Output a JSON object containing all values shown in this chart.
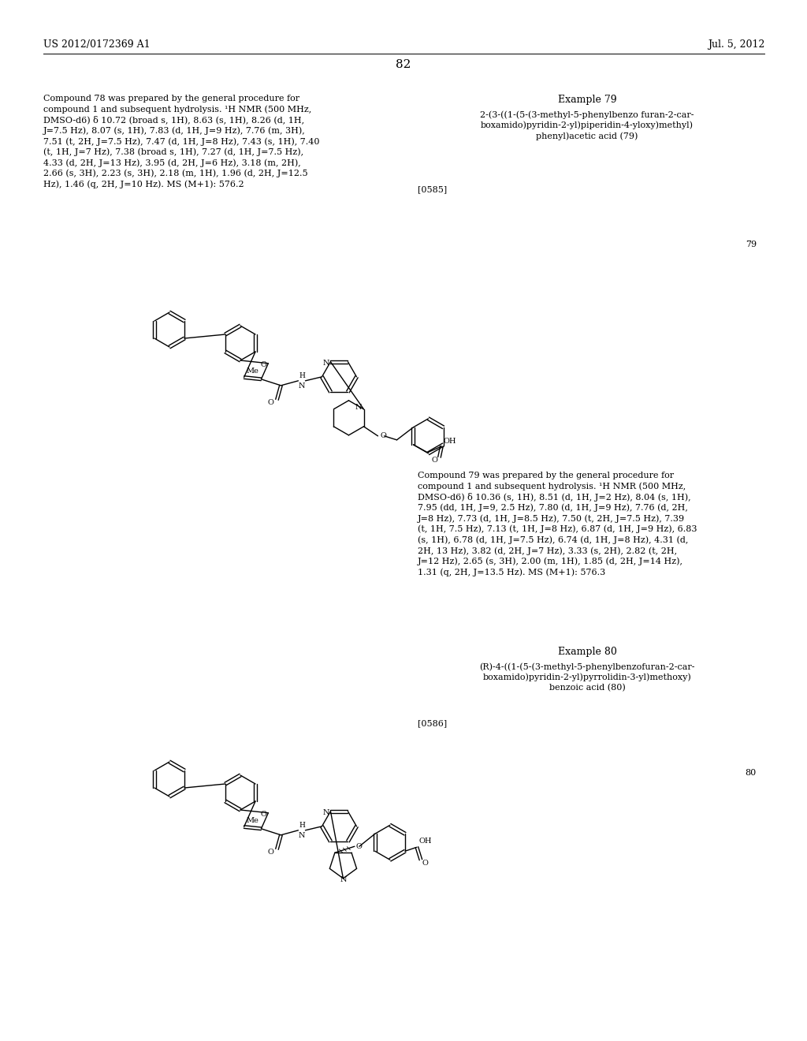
{
  "background_color": "#ffffff",
  "header_left": "US 2012/0172369 A1",
  "header_right": "Jul. 5, 2012",
  "page_number": "82",
  "left_col_text_1": "Compound 78 was prepared by the general procedure for\ncompound 1 and subsequent hydrolysis. ¹H NMR (500 MHz,\nDMSO-d6) δ 10.72 (broad s, 1H), 8.63 (s, 1H), 8.26 (d, 1H,\nJ=7.5 Hz), 8.07 (s, 1H), 7.83 (d, 1H, J=9 Hz), 7.76 (m, 3H),\n7.51 (t, 2H, J=7.5 Hz), 7.47 (d, 1H, J=8 Hz), 7.43 (s, 1H), 7.40\n(t, 1H, J=7 Hz), 7.38 (broad s, 1H), 7.27 (d, 1H, J=7.5 Hz),\n4.33 (d, 2H, J=13 Hz), 3.95 (d, 2H, J=6 Hz), 3.18 (m, 2H),\n2.66 (s, 3H), 2.23 (s, 3H), 2.18 (m, 1H), 1.96 (d, 2H, J=12.5\nHz), 1.46 (q, 2H, J=10 Hz). MS (M+1): 576.2",
  "right_col_title_1": "Example 79",
  "right_col_name_1": "2-(3-((1-(5-(3-methyl-5-phenylbenzo furan-2-car-\nboxamido)pyridin-2-yl)piperidin-4-yloxy)methyl)\nphenyl)acetic acid (79)",
  "right_col_ref_1": "[0585]",
  "compound_num_79": "79",
  "right_col_text_2": "Compound 79 was prepared by the general procedure for\ncompound 1 and subsequent hydrolysis. ¹H NMR (500 MHz,\nDMSO-d6) δ 10.36 (s, 1H), 8.51 (d, 1H, J=2 Hz), 8.04 (s, 1H),\n7.95 (dd, 1H, J=9, 2.5 Hz), 7.80 (d, 1H, J=9 Hz), 7.76 (d, 2H,\nJ=8 Hz), 7.73 (d, 1H, J=8.5 Hz), 7.50 (t, 2H, J=7.5 Hz), 7.39\n(t, 1H, 7.5 Hz), 7.13 (t, 1H, J=8 Hz), 6.87 (d, 1H, J=9 Hz), 6.83\n(s, 1H), 6.78 (d, 1H, J=7.5 Hz), 6.74 (d, 1H, J=8 Hz), 4.31 (d,\n2H, 13 Hz), 3.82 (d, 2H, J=7 Hz), 3.33 (s, 2H), 2.82 (t, 2H,\nJ=12 Hz), 2.65 (s, 3H), 2.00 (m, 1H), 1.85 (d, 2H, J=14 Hz),\n1.31 (q, 2H, J=13.5 Hz). MS (M+1): 576.3",
  "right_col_title_2": "Example 80",
  "right_col_name_2": "(R)-4-((1-(5-(3-methyl-5-phenylbenzofuran-2-car-\nboxamido)pyridin-2-yl)pyrrolidin-3-yl)methoxy)\nbenzoic acid (80)",
  "right_col_ref_2": "[0586]",
  "compound_num_80": "80",
  "font_size_body": 8.0,
  "font_size_header": 9.0,
  "font_size_page_num": 11,
  "font_size_example_title": 9.0,
  "font_size_compound_num": 8
}
